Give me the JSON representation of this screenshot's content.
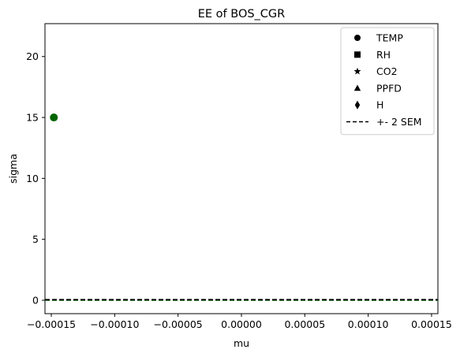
{
  "chart_data": {
    "type": "scatter",
    "title": "EE of BOS_CGR",
    "xlabel": "mu",
    "ylabel": "sigma",
    "xlim": [
      -0.000155,
      0.000155
    ],
    "ylim": [
      -1.1,
      22.7
    ],
    "xticks": [
      {
        "value": -0.00015,
        "label": "−0.00015"
      },
      {
        "value": -0.0001,
        "label": "−0.00010"
      },
      {
        "value": -5e-05,
        "label": "−0.00005"
      },
      {
        "value": 0.0,
        "label": "0.00000"
      },
      {
        "value": 5e-05,
        "label": "0.00005"
      },
      {
        "value": 0.0001,
        "label": "0.00010"
      },
      {
        "value": 0.00015,
        "label": "0.00015"
      }
    ],
    "yticks": [
      {
        "value": 0,
        "label": "0"
      },
      {
        "value": 5,
        "label": "5"
      },
      {
        "value": 10,
        "label": "10"
      },
      {
        "value": 15,
        "label": "15"
      },
      {
        "value": 20,
        "label": "20"
      }
    ],
    "grid": false,
    "legend_position": "top-right",
    "legend": [
      {
        "label": "TEMP",
        "marker": "circle"
      },
      {
        "label": "RH",
        "marker": "square"
      },
      {
        "label": "CO2",
        "marker": "star"
      },
      {
        "label": "PPFD",
        "marker": "triangle"
      },
      {
        "label": "H",
        "marker": "diamond"
      },
      {
        "label": "+- 2 SEM",
        "marker": "dashed-line"
      }
    ],
    "points": [
      {
        "x": -0.000148,
        "y": 15.0,
        "marker": "circle",
        "color": "#006400"
      }
    ],
    "sem_lines": [
      {
        "y": 0.0,
        "color": "#006400",
        "style": "dashed"
      },
      {
        "y": 0.05,
        "color": "#000000",
        "style": "dashed"
      }
    ],
    "colors": {
      "point": "#006400",
      "axes": "#000000",
      "legend_marker": "#000000"
    }
  }
}
